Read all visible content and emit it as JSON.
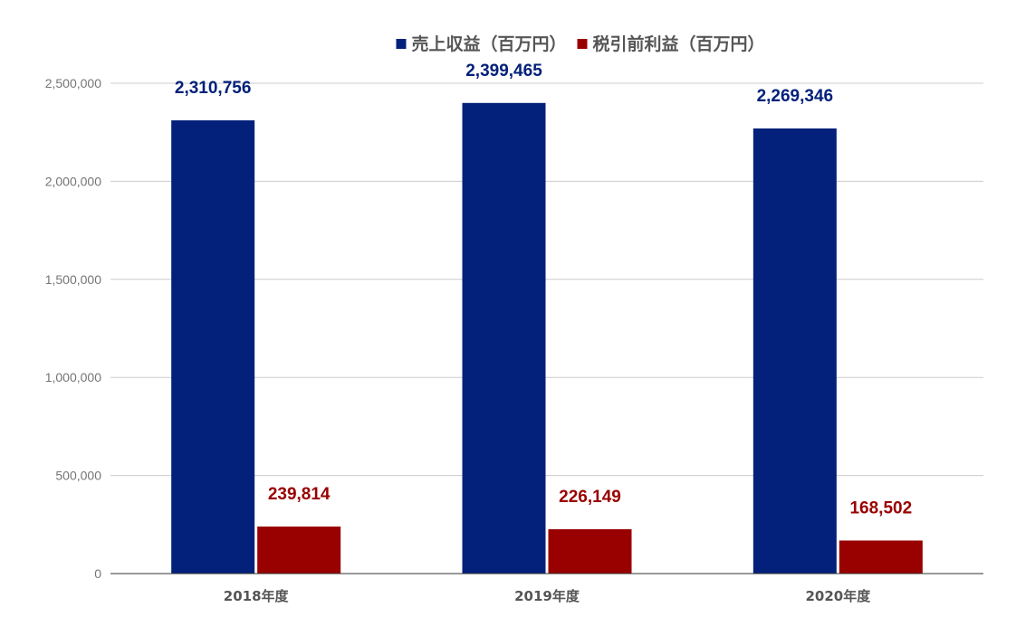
{
  "chart_data": {
    "type": "bar",
    "categories": [
      "2018年度",
      "2019年度",
      "2020年度"
    ],
    "series": [
      {
        "name": "売上収益（百万円）",
        "color": "#03217a",
        "values": [
          2310756,
          2399465,
          2269346
        ],
        "data_labels": [
          "2,310,756",
          "2,399,465",
          "2,269,346"
        ]
      },
      {
        "name": "税引前利益（百万円）",
        "color": "#990000",
        "values": [
          239814,
          226149,
          168502
        ],
        "data_labels": [
          "239,814",
          "226,149",
          "168,502"
        ]
      }
    ],
    "y_ticks": [
      {
        "value": 0,
        "label": "0"
      },
      {
        "value": 500000,
        "label": "500,000"
      },
      {
        "value": 1000000,
        "label": "1,000,000"
      },
      {
        "value": 1500000,
        "label": "1,500,000"
      },
      {
        "value": 2000000,
        "label": "2,000,000"
      },
      {
        "value": 2500000,
        "label": "2,500,000"
      }
    ],
    "ylim": [
      0,
      2500000
    ],
    "grid": true,
    "legend_position": "top-center",
    "title": "",
    "xlabel": "",
    "ylabel": ""
  }
}
